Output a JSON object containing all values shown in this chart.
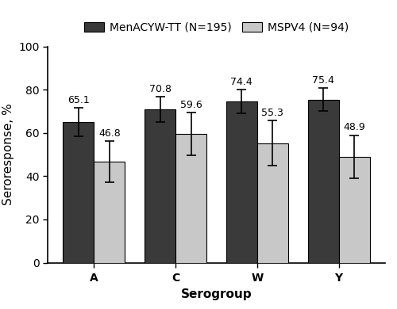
{
  "categories": [
    "A",
    "C",
    "W",
    "Y"
  ],
  "series": [
    {
      "name": "MenACYW-TT (N=195)",
      "values": [
        65.1,
        70.8,
        74.4,
        75.4
      ],
      "errors": [
        6.5,
        5.8,
        5.5,
        5.2
      ],
      "color": "#3a3a3a"
    },
    {
      "name": "MSPV4 (N=94)",
      "values": [
        46.8,
        59.6,
        55.3,
        48.9
      ],
      "errors": [
        9.5,
        9.8,
        10.5,
        10.0
      ],
      "color": "#c8c8c8"
    }
  ],
  "ylabel": "Seroresponse, %",
  "xlabel": "Serogroup",
  "ylim": [
    0,
    100
  ],
  "yticks": [
    0,
    20,
    40,
    60,
    80,
    100
  ],
  "bar_width": 0.38,
  "label_fontsize": 9.0,
  "axis_label_fontsize": 11,
  "tick_fontsize": 10,
  "legend_fontsize": 10,
  "bar_edge_color": "#000000",
  "error_color": "#000000",
  "background_color": "#ffffff"
}
